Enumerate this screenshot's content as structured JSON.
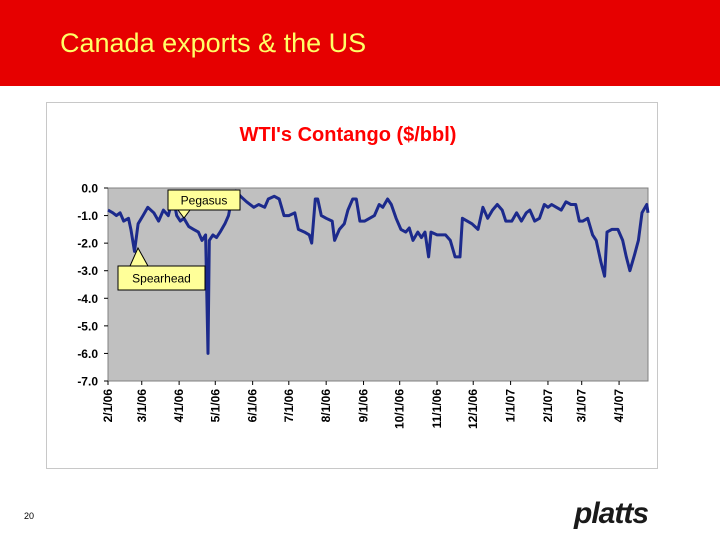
{
  "header": {
    "title": "Canada exports & the US"
  },
  "chart_data": {
    "type": "line",
    "title": "WTI's Contango ($/bbl)",
    "x": [
      "2006-02-01",
      "2006-02-05",
      "2006-02-08",
      "2006-02-11",
      "2006-02-14",
      "2006-02-18",
      "2006-02-20",
      "2006-02-23",
      "2006-02-26",
      "2006-03-02",
      "2006-03-06",
      "2006-03-11",
      "2006-03-15",
      "2006-03-19",
      "2006-03-23",
      "2006-03-27",
      "2006-03-30",
      "2006-04-02",
      "2006-04-05",
      "2006-04-09",
      "2006-04-13",
      "2006-04-17",
      "2006-04-20",
      "2006-04-23",
      "2006-04-25",
      "2006-04-26",
      "2006-04-29",
      "2006-05-02",
      "2006-05-05",
      "2006-05-09",
      "2006-05-12",
      "2006-05-15",
      "2006-05-18",
      "2006-05-22",
      "2006-05-27",
      "2006-06-02",
      "2006-06-06",
      "2006-06-11",
      "2006-06-14",
      "2006-06-19",
      "2006-06-23",
      "2006-06-27",
      "2006-07-01",
      "2006-07-06",
      "2006-07-09",
      "2006-07-14",
      "2006-07-18",
      "2006-07-20",
      "2006-07-23",
      "2006-07-25",
      "2006-07-28",
      "2006-08-01",
      "2006-08-06",
      "2006-08-08",
      "2006-08-12",
      "2006-08-16",
      "2006-08-19",
      "2006-08-23",
      "2006-08-26",
      "2006-08-29",
      "2006-09-02",
      "2006-09-06",
      "2006-09-10",
      "2006-09-14",
      "2006-09-17",
      "2006-09-21",
      "2006-09-24",
      "2006-09-28",
      "2006-10-02",
      "2006-10-06",
      "2006-10-09",
      "2006-10-12",
      "2006-10-16",
      "2006-10-19",
      "2006-10-22",
      "2006-10-25",
      "2006-10-27",
      "2006-11-01",
      "2006-11-04",
      "2006-11-08",
      "2006-11-12",
      "2006-11-16",
      "2006-11-20",
      "2006-11-22",
      "2006-11-26",
      "2006-11-30",
      "2006-12-05",
      "2006-12-09",
      "2006-12-13",
      "2006-12-17",
      "2006-12-21",
      "2006-12-25",
      "2006-12-28",
      "2007-01-02",
      "2007-01-06",
      "2007-01-10",
      "2007-01-14",
      "2007-01-17",
      "2007-01-21",
      "2007-01-25",
      "2007-01-29",
      "2007-02-01",
      "2007-02-04",
      "2007-02-08",
      "2007-02-12",
      "2007-02-16",
      "2007-02-20",
      "2007-02-24",
      "2007-02-27",
      "2007-03-02",
      "2007-03-06",
      "2007-03-10",
      "2007-03-13",
      "2007-03-17",
      "2007-03-20",
      "2007-03-22",
      "2007-03-26",
      "2007-03-31",
      "2007-04-04",
      "2007-04-07",
      "2007-04-10",
      "2007-04-14",
      "2007-04-17",
      "2007-04-20",
      "2007-04-24",
      "2007-04-25"
    ],
    "values": [
      -0.8,
      -0.9,
      -1.0,
      -0.9,
      -1.2,
      -1.1,
      -1.5,
      -2.3,
      -1.3,
      -1.0,
      -0.7,
      -0.9,
      -1.2,
      -0.8,
      -1.0,
      -0.3,
      -1.0,
      -1.2,
      -1.1,
      -1.4,
      -1.5,
      -1.6,
      -1.9,
      -1.7,
      -6.0,
      -1.9,
      -1.7,
      -1.8,
      -1.6,
      -1.3,
      -1.0,
      -0.3,
      -0.1,
      -0.3,
      -0.5,
      -0.7,
      -0.6,
      -0.7,
      -0.4,
      -0.3,
      -0.4,
      -1.0,
      -1.0,
      -0.9,
      -1.5,
      -1.6,
      -1.7,
      -2.0,
      -0.4,
      -0.4,
      -1.0,
      -1.1,
      -1.2,
      -1.9,
      -1.5,
      -1.3,
      -0.8,
      -0.4,
      -0.4,
      -1.2,
      -1.2,
      -1.1,
      -1.0,
      -0.6,
      -0.7,
      -0.4,
      -0.6,
      -1.1,
      -1.5,
      -1.6,
      -1.45,
      -1.9,
      -1.6,
      -1.8,
      -1.6,
      -2.5,
      -1.6,
      -1.7,
      -1.7,
      -1.7,
      -1.9,
      -2.5,
      -2.5,
      -1.1,
      -1.2,
      -1.3,
      -1.5,
      -0.7,
      -1.1,
      -0.8,
      -0.6,
      -0.8,
      -1.2,
      -1.2,
      -0.9,
      -1.2,
      -0.9,
      -0.8,
      -1.2,
      -1.1,
      -0.6,
      -0.7,
      -0.6,
      -0.7,
      -0.8,
      -0.5,
      -0.6,
      -0.6,
      -1.2,
      -1.2,
      -1.1,
      -1.7,
      -1.9,
      -2.7,
      -3.2,
      -1.6,
      -1.5,
      -1.5,
      -1.9,
      -2.5,
      -3.0,
      -2.4,
      -1.9,
      -0.9,
      -0.6,
      -0.9
    ],
    "color": "#1c2a8c",
    "xlim": [
      "2006-02-01",
      "2007-04-25"
    ],
    "xticks": [
      {
        "value": "2006-02-01",
        "label": "2/1/06"
      },
      {
        "value": "2006-03-01",
        "label": "3/1/06"
      },
      {
        "value": "2006-04-01",
        "label": "4/1/06"
      },
      {
        "value": "2006-05-01",
        "label": "5/1/06"
      },
      {
        "value": "2006-06-01",
        "label": "6/1/06"
      },
      {
        "value": "2006-07-01",
        "label": "7/1/06"
      },
      {
        "value": "2006-08-01",
        "label": "8/1/06"
      },
      {
        "value": "2006-09-01",
        "label": "9/1/06"
      },
      {
        "value": "2006-10-01",
        "label": "10/1/06"
      },
      {
        "value": "2006-11-01",
        "label": "11/1/06"
      },
      {
        "value": "2006-12-01",
        "label": "12/1/06"
      },
      {
        "value": "2007-01-01",
        "label": "1/1/07"
      },
      {
        "value": "2007-02-01",
        "label": "2/1/07"
      },
      {
        "value": "2007-03-01",
        "label": "3/1/07"
      },
      {
        "value": "2007-04-01",
        "label": "4/1/07"
      }
    ],
    "ylim": [
      -7,
      0
    ],
    "yticks": [
      {
        "value": 0,
        "label": "0.0"
      },
      {
        "value": -1,
        "label": "-1.0"
      },
      {
        "value": -2,
        "label": "-2.0"
      },
      {
        "value": -3,
        "label": "-3.0"
      },
      {
        "value": -4,
        "label": "-4.0"
      },
      {
        "value": -5,
        "label": "-5.0"
      },
      {
        "value": -6,
        "label": "-6.0"
      },
      {
        "value": -7,
        "label": "-7.0"
      }
    ],
    "grid": false,
    "annotations": [
      "Pegasus",
      "Spearhead"
    ]
  },
  "footer": {
    "page_number": "20",
    "logo": "platts"
  }
}
